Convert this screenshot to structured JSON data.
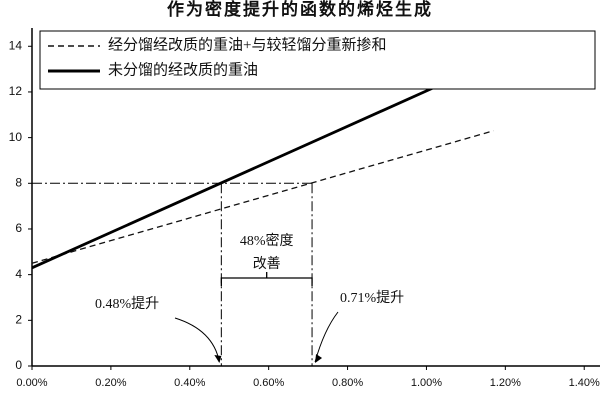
{
  "chart_data": {
    "type": "line",
    "title": "作为密度提升的函数的烯烃生成",
    "series": [
      {
        "name": "经分馏经改质的重油+与较轻馏分重新掺和",
        "color": "#111111",
        "dash": "dashed",
        "x": [
          0,
          1.17
        ],
        "values": [
          4.5,
          10.3
        ]
      },
      {
        "name": "未分馏的经改质的重油",
        "color": "#000000",
        "dash": "solid",
        "x": [
          0,
          1.02
        ],
        "values": [
          4.3,
          12.2
        ]
      }
    ],
    "reference_lines": {
      "y": 8,
      "x": [
        0.48,
        0.71
      ]
    },
    "annotations": {
      "improvement": [
        "48%密度",
        "改善"
      ],
      "low": "0.48%提升",
      "high": "0.71%提升"
    },
    "xlim": [
      0,
      1.44
    ],
    "xticks": [
      {
        "value": 0,
        "label": "0.00%"
      },
      {
        "value": 0.2,
        "label": "0.20%"
      },
      {
        "value": 0.4,
        "label": "0.40%"
      },
      {
        "value": 0.6,
        "label": "0.60%"
      },
      {
        "value": 0.8,
        "label": "0.80%"
      },
      {
        "value": 1.0,
        "label": "1.00%"
      },
      {
        "value": 1.2,
        "label": "1.20%"
      },
      {
        "value": 1.4,
        "label": "1.40%"
      }
    ],
    "ylim": [
      0,
      14.8
    ],
    "yticks": [
      0,
      2,
      4,
      6,
      8,
      10,
      12,
      14
    ],
    "legend": "top"
  }
}
